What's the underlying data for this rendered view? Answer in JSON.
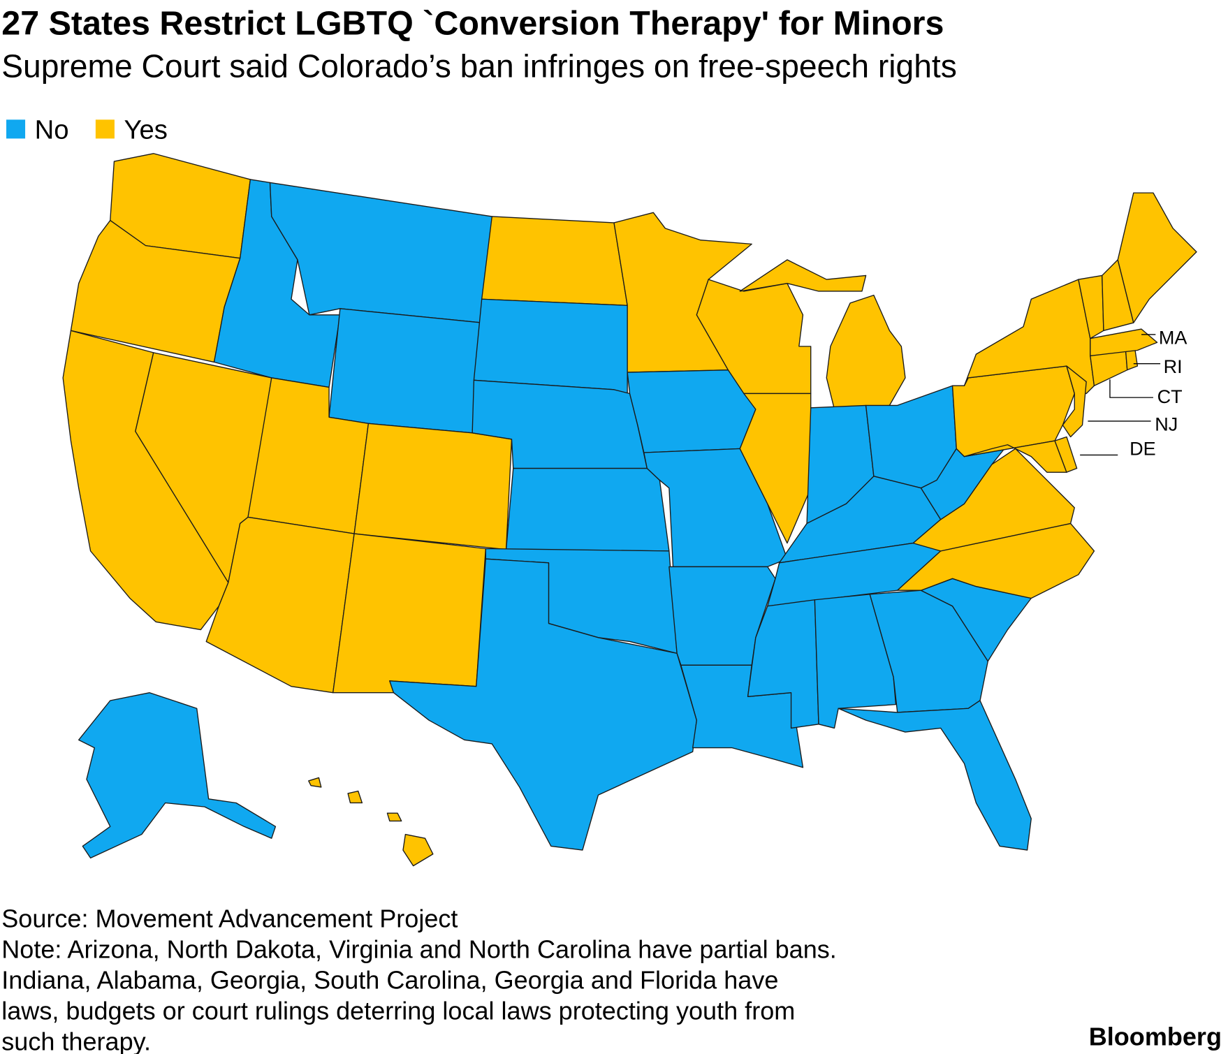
{
  "title": "27 States Restrict LGBTQ `Conversion Therapy' for Minors",
  "subtitle": "Supreme Court said Colorado’s ban infringes on free-speech rights",
  "legend": [
    {
      "name": "No",
      "color": "#10a8f0"
    },
    {
      "name": "Yes",
      "color": "#ffc300"
    }
  ],
  "states": [
    {
      "status": "Yes"
    },
    {
      "status": "Yes"
    },
    {
      "status": "Yes"
    },
    {
      "status": "Yes"
    },
    {
      "status": "No"
    },
    {
      "status": "No"
    },
    {
      "status": "No"
    },
    {
      "status": "Yes"
    },
    {
      "status": "Yes"
    },
    {
      "status": "Yes"
    },
    {
      "status": "Yes"
    },
    {
      "status": "Yes"
    },
    {
      "status": "No"
    },
    {
      "status": "No"
    },
    {
      "status": "No"
    },
    {
      "status": "No"
    },
    {
      "status": "No"
    },
    {
      "status": "Yes"
    },
    {
      "status": "No"
    },
    {
      "status": "No"
    },
    {
      "status": "No"
    },
    {
      "status": "No"
    },
    {
      "status": "Yes"
    },
    {
      "status": "Yes"
    },
    {
      "status": "Yes"
    },
    {
      "status": "No"
    },
    {
      "status": "No"
    },
    {
      "status": "No"
    },
    {
      "status": "No"
    },
    {
      "status": "No"
    },
    {
      "status": "No"
    },
    {
      "status": "No"
    },
    {
      "status": "No"
    },
    {
      "status": "No"
    },
    {
      "status": "Yes"
    },
    {
      "status": "Yes"
    },
    {
      "status": "No"
    },
    {
      "status": "Yes"
    },
    {
      "status": "Yes"
    },
    {
      "status": "Yes"
    },
    {
      "status": "Yes"
    },
    {
      "status": "Yes"
    },
    {
      "status": "Yes"
    },
    {
      "status": "Yes"
    },
    {
      "status": "Yes"
    },
    {
      "status": "Yes"
    },
    {
      "status": "Yes"
    },
    {
      "status": "Yes"
    },
    {
      "status": "No"
    },
    {
      "status": "Yes"
    }
  ],
  "callouts": [
    "MA",
    "RI",
    "CT",
    "NJ",
    "DE"
  ],
  "source": "Source: Movement Advancement Project",
  "note_lines": [
    "Note: Arizona, North Dakota, Virginia and North Carolina have partial bans.",
    "Indiana, Alabama, Georgia, South Carolina, Georgia and Florida have",
    "laws, budgets or court rulings deterring local laws protecting youth from",
    "such therapy."
  ],
  "brand": "Bloomberg"
}
